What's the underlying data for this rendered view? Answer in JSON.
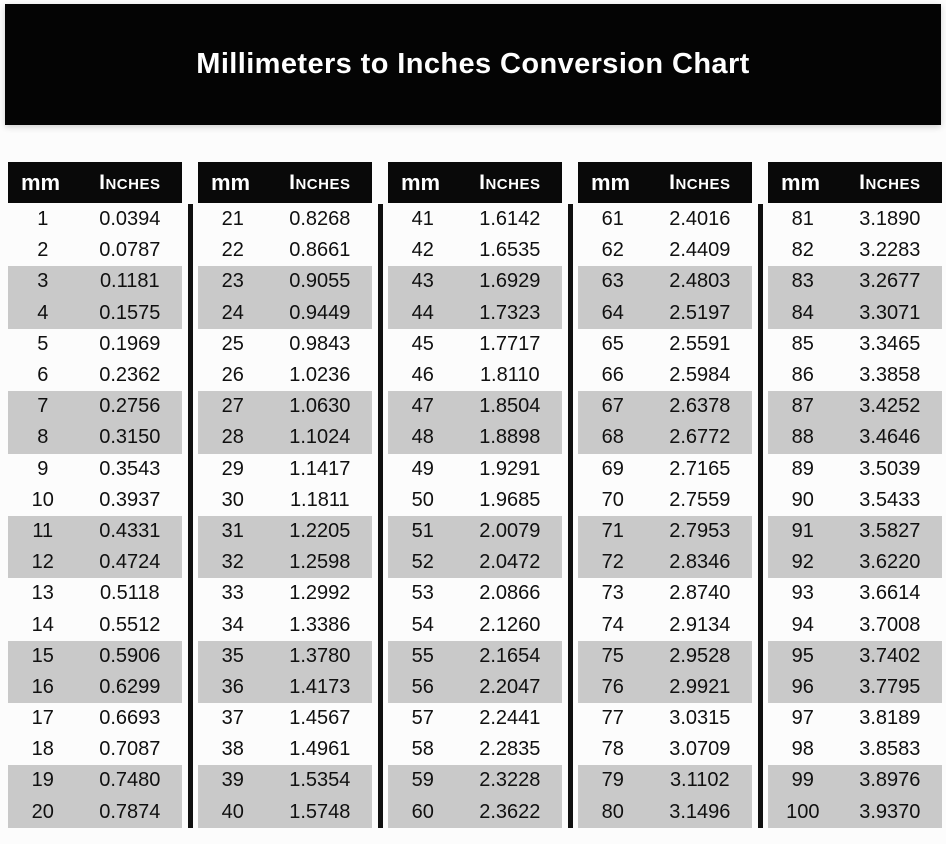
{
  "colors": {
    "page_bg": "#fcfcfc",
    "banner_bg": "#040404",
    "header_bg": "#090909",
    "shaded_row": "#c9c9c9",
    "text": "#101010",
    "header_text": "#ffffff",
    "divider": "#101010"
  },
  "chart_data": {
    "type": "table",
    "title": "Millimeters to Inches Conversion Chart",
    "columns": [
      "mm",
      "Inches"
    ],
    "column_groups": 5,
    "rows_per_group": 20,
    "shading_note": "rows shaded in alternating bands of two (rows 3-4, 7-8, 11-12, 15-16, 19-20 of each group)",
    "mm": [
      1,
      2,
      3,
      4,
      5,
      6,
      7,
      8,
      9,
      10,
      11,
      12,
      13,
      14,
      15,
      16,
      17,
      18,
      19,
      20,
      21,
      22,
      23,
      24,
      25,
      26,
      27,
      28,
      29,
      30,
      31,
      32,
      33,
      34,
      35,
      36,
      37,
      38,
      39,
      40,
      41,
      42,
      43,
      44,
      45,
      46,
      47,
      48,
      49,
      50,
      51,
      52,
      53,
      54,
      55,
      56,
      57,
      58,
      59,
      60,
      61,
      62,
      63,
      64,
      65,
      66,
      67,
      68,
      69,
      70,
      71,
      72,
      73,
      74,
      75,
      76,
      77,
      78,
      79,
      80,
      81,
      82,
      83,
      84,
      85,
      86,
      87,
      88,
      89,
      90,
      91,
      92,
      93,
      94,
      95,
      96,
      97,
      98,
      99,
      100
    ],
    "inches": [
      "0.0394",
      "0.0787",
      "0.1181",
      "0.1575",
      "0.1969",
      "0.2362",
      "0.2756",
      "0.3150",
      "0.3543",
      "0.3937",
      "0.4331",
      "0.4724",
      "0.5118",
      "0.5512",
      "0.5906",
      "0.6299",
      "0.6693",
      "0.7087",
      "0.7480",
      "0.7874",
      "0.8268",
      "0.8661",
      "0.9055",
      "0.9449",
      "0.9843",
      "1.0236",
      "1.0630",
      "1.1024",
      "1.1417",
      "1.1811",
      "1.2205",
      "1.2598",
      "1.2992",
      "1.3386",
      "1.3780",
      "1.4173",
      "1.4567",
      "1.4961",
      "1.5354",
      "1.5748",
      "1.6142",
      "1.6535",
      "1.6929",
      "1.7323",
      "1.7717",
      "1.8110",
      "1.8504",
      "1.8898",
      "1.9291",
      "1.9685",
      "2.0079",
      "2.0472",
      "2.0866",
      "2.1260",
      "2.1654",
      "2.2047",
      "2.2441",
      "2.2835",
      "2.3228",
      "2.3622",
      "2.4016",
      "2.4409",
      "2.4803",
      "2.5197",
      "2.5591",
      "2.5984",
      "2.6378",
      "2.6772",
      "2.7165",
      "2.7559",
      "2.7953",
      "2.8346",
      "2.8740",
      "2.9134",
      "2.9528",
      "2.9921",
      "3.0315",
      "3.0709",
      "3.1102",
      "3.1496",
      "3.1890",
      "3.2283",
      "3.2677",
      "3.3071",
      "3.3465",
      "3.3858",
      "3.4252",
      "3.4646",
      "3.5039",
      "3.5433",
      "3.5827",
      "3.6220",
      "3.6614",
      "3.7008",
      "3.7402",
      "3.7795",
      "3.8189",
      "3.8583",
      "3.8976",
      "3.9370"
    ]
  }
}
